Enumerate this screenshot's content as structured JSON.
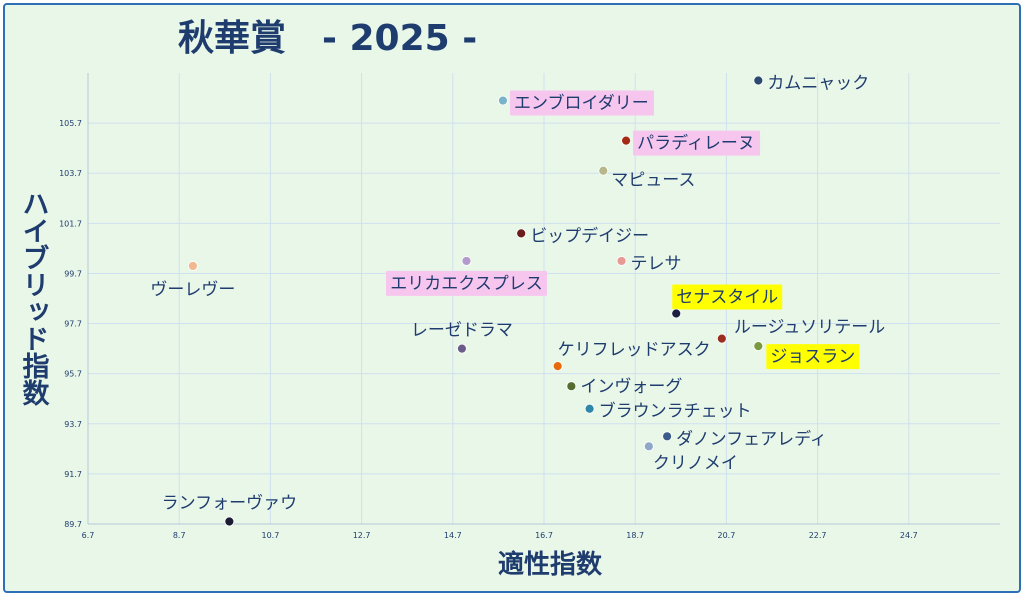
{
  "chart_data": {
    "type": "scatter",
    "title": "秋華賞　- 2025 -",
    "xlabel": "適性指数",
    "ylabel": "ハイブリッド指数",
    "xlim": [
      6.7,
      26.7
    ],
    "ylim": [
      89.7,
      107.7
    ],
    "xticks": [
      "6.7",
      "8.7",
      "10.7",
      "12.7",
      "14.7",
      "16.7",
      "18.7",
      "20.7",
      "22.7",
      "24.7"
    ],
    "yticks": [
      "89.7",
      "91.7",
      "93.7",
      "95.7",
      "97.7",
      "99.7",
      "101.7",
      "103.7",
      "105.7"
    ],
    "grid": true,
    "points": [
      {
        "label": "カムニャック",
        "x": 21.4,
        "y": 107.4,
        "color": "#2b4a6e",
        "highlight": ""
      },
      {
        "label": "エンブロイダリー",
        "x": 15.8,
        "y": 106.6,
        "color": "#7ab3c9",
        "highlight": "#f7c6ef"
      },
      {
        "label": "パラディレーヌ",
        "x": 18.5,
        "y": 105.0,
        "color": "#a32b14",
        "highlight": "#f7c6ef"
      },
      {
        "label": "マピュース",
        "x": 18.0,
        "y": 103.8,
        "color": "#b7b78c",
        "highlight": ""
      },
      {
        "label": "ビップデイジー",
        "x": 16.2,
        "y": 101.3,
        "color": "#6b1d1d",
        "highlight": ""
      },
      {
        "label": "テレサ",
        "x": 18.4,
        "y": 100.2,
        "color": "#e89a92",
        "highlight": ""
      },
      {
        "label": "ヴーレヴー",
        "x": 9.0,
        "y": 100.0,
        "color": "#f0b98f",
        "highlight": ""
      },
      {
        "label": "エリカエクスプレス",
        "x": 15.0,
        "y": 100.2,
        "color": "#b39ccb",
        "highlight": "#f7c6ef"
      },
      {
        "label": "セナスタイル",
        "x": 19.6,
        "y": 98.1,
        "color": "#1b2040",
        "highlight": "#ffff00"
      },
      {
        "label": "ルージュソリテール",
        "x": 20.6,
        "y": 97.1,
        "color": "#9b2d1e",
        "highlight": ""
      },
      {
        "label": "ジョスラン",
        "x": 21.4,
        "y": 96.8,
        "color": "#7a9a3e",
        "highlight": "#ffff00"
      },
      {
        "label": "レーゼドラマ",
        "x": 14.9,
        "y": 96.7,
        "color": "#6b5b88",
        "highlight": ""
      },
      {
        "label": "ケリフレッドアスク",
        "x": 17.0,
        "y": 96.0,
        "color": "#e8690c",
        "highlight": ""
      },
      {
        "label": "インヴォーグ",
        "x": 17.3,
        "y": 95.2,
        "color": "#556b2f",
        "highlight": ""
      },
      {
        "label": "ブラウンラチェット",
        "x": 17.7,
        "y": 94.3,
        "color": "#2e86a8",
        "highlight": ""
      },
      {
        "label": "ダノンフェアレディ",
        "x": 19.4,
        "y": 93.2,
        "color": "#3b5b88",
        "highlight": ""
      },
      {
        "label": "クリノメイ",
        "x": 19.0,
        "y": 92.8,
        "color": "#8fa8c8",
        "highlight": ""
      },
      {
        "label": "ランフォーヴァウ",
        "x": 9.8,
        "y": 89.8,
        "color": "#1b1b33",
        "highlight": ""
      }
    ]
  }
}
